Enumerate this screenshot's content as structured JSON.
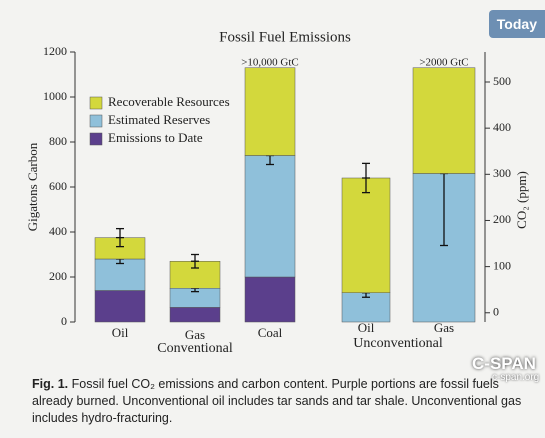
{
  "chart_data": {
    "type": "stacked-bar",
    "title": "Fossil Fuel Emissions",
    "categories": [
      "Oil",
      "Gas",
      "Coal",
      "Oil",
      "Gas"
    ],
    "groups": [
      "Conventional",
      "Unconventional"
    ],
    "series": [
      {
        "name": "Recoverable Resources",
        "color": "#d3d83c",
        "values": [
          95,
          120,
          390,
          510,
          470
        ],
        "errors": [
          40,
          30,
          null,
          65,
          null
        ]
      },
      {
        "name": "Estimated Reserves",
        "color": "#8fc0da",
        "values": [
          140,
          85,
          540,
          130,
          660
        ],
        "errors": [
          20,
          15,
          40,
          20,
          320
        ]
      },
      {
        "name": "Emissions to Date",
        "color": "#5b3f8c",
        "values": [
          140,
          65,
          200,
          0,
          0
        ],
        "errors": [
          null,
          null,
          null,
          null,
          null
        ]
      }
    ],
    "annotations": [
      ">10,000 GtC",
      ">2000 GtC"
    ],
    "ylabel": "Gigatons Carbon",
    "y2label": "CO₂ (ppm)",
    "ylim": [
      0,
      1200
    ],
    "yticks": [
      0,
      200,
      400,
      600,
      800,
      1000,
      1200
    ],
    "y2lim": [
      -20,
      565
    ],
    "y2ticks": [
      0,
      100,
      200,
      300,
      400,
      500
    ]
  },
  "caption_label": "Fig. 1.",
  "caption": "Fossil fuel CO₂ emissions and carbon content. Purple portions are fossil fuels already burned. Unconventional oil includes tar sands and tar shale. Unconventional gas includes hydro-fracturing.",
  "logo": "Today",
  "watermark": "C-SPAN",
  "watermark_url": "c-span.org"
}
